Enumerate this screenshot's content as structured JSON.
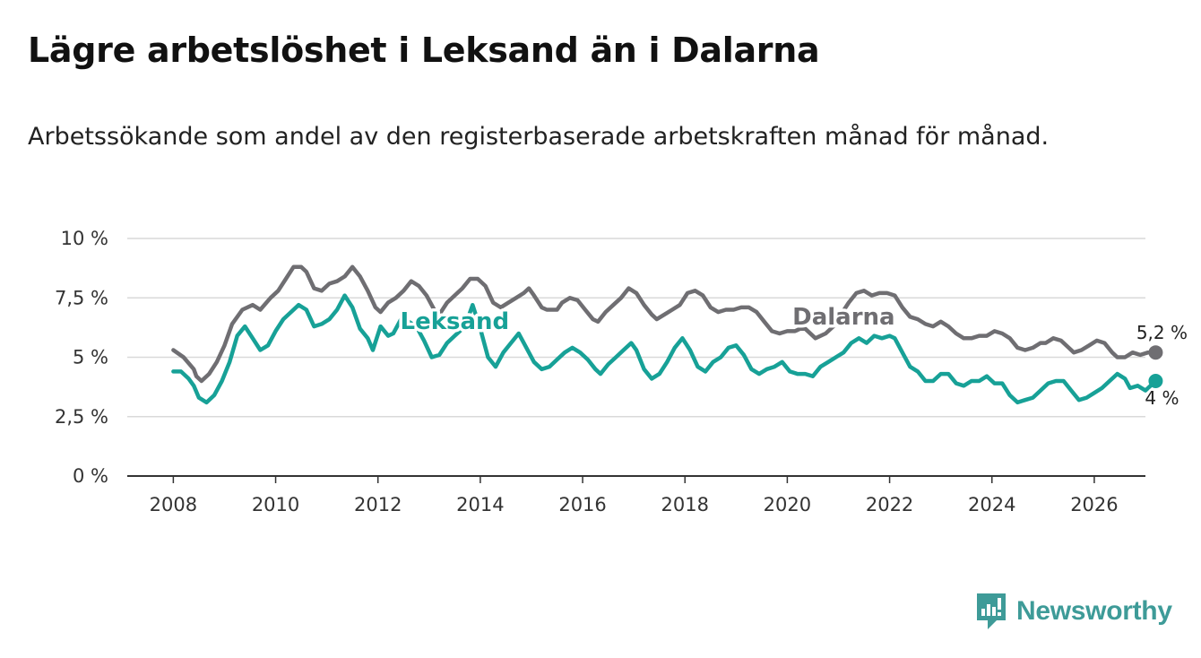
{
  "header": {
    "title": "Lägre arbetslöshet i Leksand än i Dalarna",
    "subtitle": "Arbetssökande som andel av den registerbaserade arbetskraften månad för månad."
  },
  "brand": {
    "name": "Newsworthy",
    "color": "#3e9b98"
  },
  "chart_data": {
    "type": "line",
    "title": "Lägre arbetslöshet i Leksand än i Dalarna",
    "xlabel": "",
    "ylabel": "",
    "xlim": [
      2007.1,
      2027.0
    ],
    "ylim": [
      0,
      10
    ],
    "y_ticks": [
      0,
      2.5,
      5,
      7.5,
      10
    ],
    "y_tick_labels": [
      "0 %",
      "2,5 %",
      "5 %",
      "7,5 %",
      "10 %"
    ],
    "x_ticks": [
      2008,
      2010,
      2012,
      2014,
      2016,
      2018,
      2020,
      2022,
      2024,
      2026
    ],
    "x_tick_labels": [
      "2008",
      "2010",
      "2012",
      "2014",
      "2016",
      "2018",
      "2020",
      "2022",
      "2024",
      "2026"
    ],
    "grid": true,
    "series": [
      {
        "name": "Dalarna",
        "color": "#6f6e72",
        "end_label": "5,2 %",
        "points": [
          [
            2008.0,
            5.3
          ],
          [
            2008.2,
            5.0
          ],
          [
            2008.4,
            4.5
          ],
          [
            2008.45,
            4.2
          ],
          [
            2008.55,
            4.0
          ],
          [
            2008.7,
            4.3
          ],
          [
            2008.85,
            4.8
          ],
          [
            2009.0,
            5.5
          ],
          [
            2009.15,
            6.4
          ],
          [
            2009.35,
            7.0
          ],
          [
            2009.55,
            7.2
          ],
          [
            2009.7,
            7.0
          ],
          [
            2009.9,
            7.5
          ],
          [
            2010.05,
            7.8
          ],
          [
            2010.2,
            8.3
          ],
          [
            2010.35,
            8.8
          ],
          [
            2010.5,
            8.8
          ],
          [
            2010.6,
            8.6
          ],
          [
            2010.75,
            7.9
          ],
          [
            2010.9,
            7.8
          ],
          [
            2011.05,
            8.1
          ],
          [
            2011.2,
            8.2
          ],
          [
            2011.35,
            8.4
          ],
          [
            2011.5,
            8.8
          ],
          [
            2011.65,
            8.4
          ],
          [
            2011.8,
            7.8
          ],
          [
            2011.95,
            7.1
          ],
          [
            2012.05,
            6.9
          ],
          [
            2012.2,
            7.3
          ],
          [
            2012.35,
            7.5
          ],
          [
            2012.5,
            7.8
          ],
          [
            2012.65,
            8.2
          ],
          [
            2012.8,
            8.0
          ],
          [
            2012.95,
            7.6
          ],
          [
            2013.1,
            7.0
          ],
          [
            2013.2,
            6.8
          ],
          [
            2013.35,
            7.3
          ],
          [
            2013.5,
            7.6
          ],
          [
            2013.65,
            7.9
          ],
          [
            2013.8,
            8.3
          ],
          [
            2013.95,
            8.3
          ],
          [
            2014.1,
            8.0
          ],
          [
            2014.25,
            7.3
          ],
          [
            2014.4,
            7.1
          ],
          [
            2014.55,
            7.3
          ],
          [
            2014.7,
            7.5
          ],
          [
            2014.85,
            7.7
          ],
          [
            2014.95,
            7.9
          ],
          [
            2015.05,
            7.6
          ],
          [
            2015.2,
            7.1
          ],
          [
            2015.3,
            7.0
          ],
          [
            2015.5,
            7.0
          ],
          [
            2015.6,
            7.3
          ],
          [
            2015.75,
            7.5
          ],
          [
            2015.9,
            7.4
          ],
          [
            2016.05,
            7.0
          ],
          [
            2016.2,
            6.6
          ],
          [
            2016.3,
            6.5
          ],
          [
            2016.45,
            6.9
          ],
          [
            2016.6,
            7.2
          ],
          [
            2016.75,
            7.5
          ],
          [
            2016.9,
            7.9
          ],
          [
            2017.05,
            7.7
          ],
          [
            2017.2,
            7.2
          ],
          [
            2017.35,
            6.8
          ],
          [
            2017.45,
            6.6
          ],
          [
            2017.6,
            6.8
          ],
          [
            2017.75,
            7.0
          ],
          [
            2017.9,
            7.2
          ],
          [
            2018.05,
            7.7
          ],
          [
            2018.2,
            7.8
          ],
          [
            2018.35,
            7.6
          ],
          [
            2018.5,
            7.1
          ],
          [
            2018.65,
            6.9
          ],
          [
            2018.8,
            7.0
          ],
          [
            2018.95,
            7.0
          ],
          [
            2019.1,
            7.1
          ],
          [
            2019.25,
            7.1
          ],
          [
            2019.4,
            6.9
          ],
          [
            2019.55,
            6.5
          ],
          [
            2019.7,
            6.1
          ],
          [
            2019.85,
            6.0
          ],
          [
            2020.0,
            6.1
          ],
          [
            2020.15,
            6.1
          ],
          [
            2020.25,
            6.2
          ],
          [
            2020.35,
            6.2
          ],
          [
            2020.55,
            5.8
          ],
          [
            2020.75,
            6.0
          ],
          [
            2020.9,
            6.3
          ],
          [
            2021.05,
            6.8
          ],
          [
            2021.2,
            7.3
          ],
          [
            2021.35,
            7.7
          ],
          [
            2021.5,
            7.8
          ],
          [
            2021.65,
            7.6
          ],
          [
            2021.8,
            7.7
          ],
          [
            2021.95,
            7.7
          ],
          [
            2022.1,
            7.6
          ],
          [
            2022.25,
            7.1
          ],
          [
            2022.4,
            6.7
          ],
          [
            2022.55,
            6.6
          ],
          [
            2022.7,
            6.4
          ],
          [
            2022.85,
            6.3
          ],
          [
            2023.0,
            6.5
          ],
          [
            2023.15,
            6.3
          ],
          [
            2023.3,
            6.0
          ],
          [
            2023.45,
            5.8
          ],
          [
            2023.6,
            5.8
          ],
          [
            2023.75,
            5.9
          ],
          [
            2023.9,
            5.9
          ],
          [
            2024.05,
            6.1
          ],
          [
            2024.2,
            6.0
          ],
          [
            2024.35,
            5.8
          ],
          [
            2024.5,
            5.4
          ],
          [
            2024.65,
            5.3
          ],
          [
            2024.8,
            5.4
          ],
          [
            2024.95,
            5.6
          ],
          [
            2025.05,
            5.6
          ],
          [
            2025.2,
            5.8
          ],
          [
            2025.35,
            5.7
          ],
          [
            2025.5,
            5.4
          ],
          [
            2025.6,
            5.2
          ],
          [
            2025.75,
            5.3
          ],
          [
            2025.9,
            5.5
          ],
          [
            2026.05,
            5.7
          ],
          [
            2026.2,
            5.6
          ],
          [
            2026.35,
            5.2
          ],
          [
            2026.45,
            5.0
          ],
          [
            2026.6,
            5.0
          ],
          [
            2026.75,
            5.2
          ],
          [
            2026.9,
            5.1
          ],
          [
            2027.05,
            5.2
          ],
          [
            2027.2,
            5.2
          ]
        ]
      },
      {
        "name": "Leksand",
        "color": "#17a197",
        "end_label": "4 %",
        "points": [
          [
            2008.0,
            4.4
          ],
          [
            2008.15,
            4.4
          ],
          [
            2008.3,
            4.1
          ],
          [
            2008.4,
            3.8
          ],
          [
            2008.5,
            3.3
          ],
          [
            2008.65,
            3.1
          ],
          [
            2008.8,
            3.4
          ],
          [
            2008.95,
            4.0
          ],
          [
            2009.1,
            4.8
          ],
          [
            2009.25,
            5.9
          ],
          [
            2009.4,
            6.3
          ],
          [
            2009.55,
            5.8
          ],
          [
            2009.7,
            5.3
          ],
          [
            2009.85,
            5.5
          ],
          [
            2010.0,
            6.1
          ],
          [
            2010.15,
            6.6
          ],
          [
            2010.3,
            6.9
          ],
          [
            2010.45,
            7.2
          ],
          [
            2010.6,
            7.0
          ],
          [
            2010.75,
            6.3
          ],
          [
            2010.9,
            6.4
          ],
          [
            2011.05,
            6.6
          ],
          [
            2011.2,
            7.0
          ],
          [
            2011.35,
            7.6
          ],
          [
            2011.5,
            7.1
          ],
          [
            2011.65,
            6.2
          ],
          [
            2011.8,
            5.8
          ],
          [
            2011.9,
            5.3
          ],
          [
            2012.05,
            6.3
          ],
          [
            2012.2,
            5.9
          ],
          [
            2012.3,
            6.0
          ],
          [
            2012.45,
            6.6
          ],
          [
            2012.6,
            6.5
          ],
          [
            2012.75,
            6.3
          ],
          [
            2012.9,
            5.7
          ],
          [
            2013.05,
            5.0
          ],
          [
            2013.2,
            5.1
          ],
          [
            2013.35,
            5.6
          ],
          [
            2013.5,
            5.9
          ],
          [
            2013.7,
            6.3
          ],
          [
            2013.85,
            7.2
          ],
          [
            2014.0,
            6.2
          ],
          [
            2014.15,
            5.0
          ],
          [
            2014.3,
            4.6
          ],
          [
            2014.45,
            5.2
          ],
          [
            2014.6,
            5.6
          ],
          [
            2014.75,
            6.0
          ],
          [
            2014.9,
            5.4
          ],
          [
            2015.05,
            4.8
          ],
          [
            2015.2,
            4.5
          ],
          [
            2015.35,
            4.6
          ],
          [
            2015.5,
            4.9
          ],
          [
            2015.65,
            5.2
          ],
          [
            2015.8,
            5.4
          ],
          [
            2015.95,
            5.2
          ],
          [
            2016.1,
            4.9
          ],
          [
            2016.25,
            4.5
          ],
          [
            2016.35,
            4.3
          ],
          [
            2016.5,
            4.7
          ],
          [
            2016.65,
            5.0
          ],
          [
            2016.8,
            5.3
          ],
          [
            2016.95,
            5.6
          ],
          [
            2017.05,
            5.3
          ],
          [
            2017.2,
            4.5
          ],
          [
            2017.35,
            4.1
          ],
          [
            2017.5,
            4.3
          ],
          [
            2017.65,
            4.8
          ],
          [
            2017.8,
            5.4
          ],
          [
            2017.95,
            5.8
          ],
          [
            2018.1,
            5.3
          ],
          [
            2018.25,
            4.6
          ],
          [
            2018.4,
            4.4
          ],
          [
            2018.55,
            4.8
          ],
          [
            2018.7,
            5.0
          ],
          [
            2018.85,
            5.4
          ],
          [
            2019.0,
            5.5
          ],
          [
            2019.15,
            5.1
          ],
          [
            2019.3,
            4.5
          ],
          [
            2019.45,
            4.3
          ],
          [
            2019.6,
            4.5
          ],
          [
            2019.75,
            4.6
          ],
          [
            2019.9,
            4.8
          ],
          [
            2020.05,
            4.4
          ],
          [
            2020.2,
            4.3
          ],
          [
            2020.35,
            4.3
          ],
          [
            2020.5,
            4.2
          ],
          [
            2020.65,
            4.6
          ],
          [
            2020.8,
            4.8
          ],
          [
            2020.95,
            5.0
          ],
          [
            2021.1,
            5.2
          ],
          [
            2021.25,
            5.6
          ],
          [
            2021.4,
            5.8
          ],
          [
            2021.55,
            5.6
          ],
          [
            2021.7,
            5.9
          ],
          [
            2021.85,
            5.8
          ],
          [
            2022.0,
            5.9
          ],
          [
            2022.1,
            5.8
          ],
          [
            2022.25,
            5.2
          ],
          [
            2022.4,
            4.6
          ],
          [
            2022.55,
            4.4
          ],
          [
            2022.7,
            4.0
          ],
          [
            2022.85,
            4.0
          ],
          [
            2023.0,
            4.3
          ],
          [
            2023.15,
            4.3
          ],
          [
            2023.3,
            3.9
          ],
          [
            2023.45,
            3.8
          ],
          [
            2023.6,
            4.0
          ],
          [
            2023.75,
            4.0
          ],
          [
            2023.9,
            4.2
          ],
          [
            2024.05,
            3.9
          ],
          [
            2024.2,
            3.9
          ],
          [
            2024.35,
            3.4
          ],
          [
            2024.5,
            3.1
          ],
          [
            2024.65,
            3.2
          ],
          [
            2024.8,
            3.3
          ],
          [
            2024.95,
            3.6
          ],
          [
            2025.1,
            3.9
          ],
          [
            2025.25,
            4.0
          ],
          [
            2025.4,
            4.0
          ],
          [
            2025.55,
            3.6
          ],
          [
            2025.7,
            3.2
          ],
          [
            2025.85,
            3.3
          ],
          [
            2026.0,
            3.5
          ],
          [
            2026.15,
            3.7
          ],
          [
            2026.3,
            4.0
          ],
          [
            2026.45,
            4.3
          ],
          [
            2026.6,
            4.1
          ],
          [
            2026.7,
            3.7
          ],
          [
            2026.85,
            3.8
          ],
          [
            2027.0,
            3.6
          ],
          [
            2027.1,
            3.8
          ],
          [
            2027.2,
            4.0
          ]
        ]
      }
    ]
  }
}
